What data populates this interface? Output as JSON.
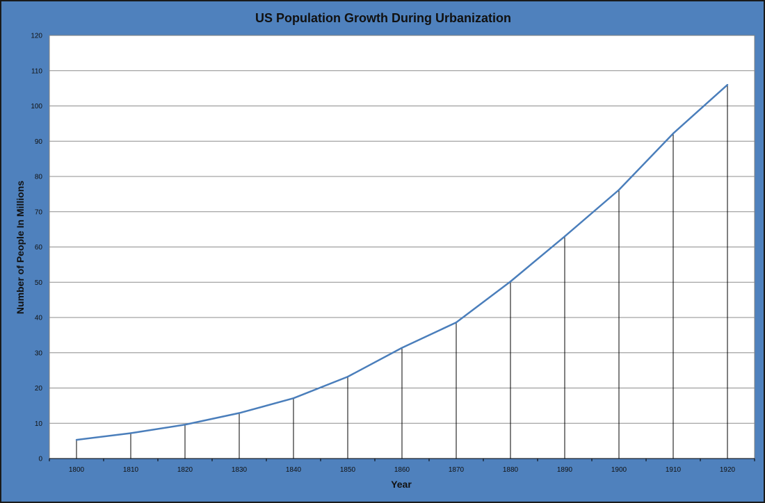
{
  "colors": {
    "frame_background": "#4f81bd",
    "plot_background": "#ffffff",
    "series_line": "#4a7ebb",
    "gridline": "#8c8c8c",
    "drop_line": "#000000",
    "text": "#111111"
  },
  "chart_data": {
    "type": "line",
    "title": "US Population Growth During Urbanization",
    "xlabel": "Year",
    "ylabel": "Number of People In Millions",
    "categories": [
      "1800",
      "1810",
      "1820",
      "1830",
      "1840",
      "1850",
      "1860",
      "1870",
      "1880",
      "1890",
      "1900",
      "1910",
      "1920"
    ],
    "series": [
      {
        "values": [
          5.3,
          7.2,
          9.6,
          12.9,
          17.1,
          23.2,
          31.4,
          38.6,
          50.2,
          63.0,
          76.2,
          92.2,
          106.0
        ]
      }
    ],
    "ylim": [
      0,
      120
    ],
    "y_ticks": [
      0,
      10,
      20,
      30,
      40,
      50,
      60,
      70,
      80,
      90,
      100,
      110,
      120
    ],
    "grid": true,
    "drop_lines": true,
    "legend": "none"
  }
}
